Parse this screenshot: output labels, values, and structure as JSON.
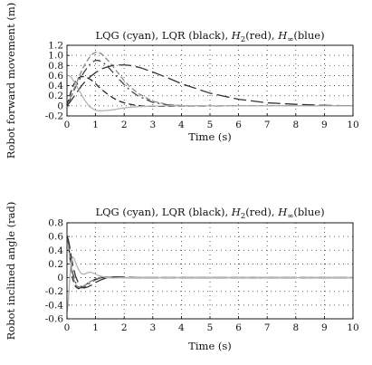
{
  "chart_data": [
    {
      "type": "line",
      "title": {
        "parts": [
          {
            "text": "LQG (cyan), LQR (black), ",
            "italic": false
          },
          {
            "text": "H",
            "italic": true
          },
          {
            "text": "2",
            "italic": false,
            "sub": true
          },
          {
            "text": "(red), ",
            "italic": false
          },
          {
            "text": "H",
            "italic": true
          },
          {
            "text": "∞",
            "italic": false,
            "sub": true
          },
          {
            "text": "(blue)",
            "italic": false
          }
        ]
      },
      "xlabel": "Time (s)",
      "ylabel": "Robot forward movement (m)",
      "xlim": [
        0,
        10
      ],
      "ylim": [
        -0.2,
        1.2
      ],
      "xticks": [
        "0",
        "1",
        "2",
        "3",
        "4",
        "5",
        "6",
        "7",
        "8",
        "9",
        "10"
      ],
      "yticks": [
        "1.2",
        "1.0",
        "0.8",
        "0.6",
        "0.4",
        "0.2",
        "0",
        "-0.2"
      ],
      "grid": true,
      "series": [
        {
          "color": "#222222",
          "dash": "7 4",
          "x": [
            0,
            0.1,
            0.2,
            0.3,
            0.4,
            0.5,
            0.6,
            0.7,
            0.8,
            0.9,
            1.0,
            1.1,
            1.2,
            1.4,
            1.6,
            1.8,
            2.0,
            2.3,
            2.6,
            3.0,
            3.5,
            4.0,
            5.0,
            6.0,
            7.0,
            8.0,
            9.0,
            10.0
          ],
          "y": [
            0,
            0.21,
            0.38,
            0.49,
            0.55,
            0.58,
            0.58,
            0.56,
            0.53,
            0.49,
            0.44,
            0.38,
            0.33,
            0.24,
            0.16,
            0.1,
            0.06,
            0.02,
            0,
            -0.01,
            -0.01,
            -0.005,
            0,
            0,
            0,
            0,
            0,
            0
          ]
        },
        {
          "color": "#444444",
          "dash": "9 4 2 4",
          "x": [
            0,
            0.1,
            0.2,
            0.3,
            0.4,
            0.5,
            0.6,
            0.7,
            0.8,
            0.9,
            1.0,
            1.1,
            1.2,
            1.3,
            1.4,
            1.6,
            1.8,
            2.0,
            2.2,
            2.5,
            3.0,
            3.5,
            4.0,
            5.0,
            6.0,
            7.0,
            8.0,
            10.0
          ],
          "y": [
            0,
            0.12,
            0.25,
            0.37,
            0.48,
            0.58,
            0.67,
            0.75,
            0.82,
            0.87,
            0.9,
            0.9,
            0.88,
            0.84,
            0.79,
            0.67,
            0.54,
            0.42,
            0.31,
            0.19,
            0.07,
            0.02,
            0,
            -0.005,
            0,
            0,
            0,
            0
          ]
        },
        {
          "color": "#888888",
          "dash": "6 3",
          "x": [
            0,
            0.1,
            0.2,
            0.3,
            0.4,
            0.5,
            0.6,
            0.7,
            0.8,
            0.9,
            1.0,
            1.1,
            1.2,
            1.3,
            1.4,
            1.6,
            1.8,
            2.0,
            2.2,
            2.5,
            3.0,
            3.5,
            4.0,
            5.0,
            6.0,
            7.0,
            8.0,
            10.0
          ],
          "y": [
            0,
            0.13,
            0.27,
            0.41,
            0.55,
            0.68,
            0.79,
            0.89,
            0.97,
            1.03,
            1.06,
            1.06,
            1.03,
            0.98,
            0.92,
            0.79,
            0.64,
            0.5,
            0.38,
            0.24,
            0.09,
            0.03,
            0.005,
            0,
            0,
            0,
            0,
            0
          ]
        },
        {
          "color": "#333333",
          "dash": "14 5",
          "x": [
            0,
            0.1,
            0.2,
            0.3,
            0.4,
            0.5,
            0.6,
            0.8,
            1.0,
            1.2,
            1.4,
            1.6,
            1.8,
            2.0,
            2.2,
            2.4,
            2.6,
            3.0,
            3.5,
            4.0,
            5.0,
            6.0,
            7.0,
            8.0,
            9.0,
            10.0
          ],
          "y": [
            0,
            0.07,
            0.15,
            0.23,
            0.31,
            0.39,
            0.46,
            0.57,
            0.66,
            0.73,
            0.77,
            0.8,
            0.81,
            0.81,
            0.8,
            0.78,
            0.75,
            0.67,
            0.56,
            0.44,
            0.25,
            0.13,
            0.06,
            0.03,
            0.01,
            0
          ]
        },
        {
          "color": "#b4b4b4",
          "dash": "none",
          "x": [
            0,
            0.05,
            0.1,
            0.15,
            0.2,
            0.3,
            0.4,
            0.5,
            0.6,
            0.7,
            0.8,
            1.0,
            1.2,
            1.4,
            1.6,
            1.8,
            2.0,
            2.2,
            2.5,
            3.0,
            3.5,
            4.0,
            5.0,
            6.0,
            10.0
          ],
          "y": [
            0.6,
            0.6,
            0.59,
            0.56,
            0.52,
            0.43,
            0.33,
            0.23,
            0.13,
            0.05,
            -0.02,
            -0.09,
            -0.1,
            -0.09,
            -0.08,
            -0.06,
            -0.04,
            -0.03,
            -0.015,
            -0.005,
            0,
            0,
            0,
            0,
            0
          ]
        }
      ]
    },
    {
      "type": "line",
      "title": {
        "parts": [
          {
            "text": "LQG (cyan), LQR (black), ",
            "italic": false
          },
          {
            "text": "H",
            "italic": true
          },
          {
            "text": "2",
            "italic": false,
            "sub": true
          },
          {
            "text": "(red), ",
            "italic": false
          },
          {
            "text": "H",
            "italic": true
          },
          {
            "text": "∞",
            "italic": false,
            "sub": true
          },
          {
            "text": "(blue)",
            "italic": false
          }
        ]
      },
      "xlabel": "Time (s)",
      "ylabel": "Robot inclined angle (rad)",
      "xlim": [
        0,
        10
      ],
      "ylim": [
        -0.6,
        0.8
      ],
      "xticks": [
        "0",
        "1",
        "2",
        "3",
        "4",
        "5",
        "6",
        "7",
        "8",
        "9",
        "10"
      ],
      "yticks": [
        "0.8",
        "0.6",
        "0.4",
        "0.2",
        "0",
        "-0.2",
        "-0.4",
        "-0.6"
      ],
      "grid": true,
      "series": [
        {
          "color": "#222222",
          "dash": "7 4",
          "x": [
            0,
            0.05,
            0.1,
            0.15,
            0.2,
            0.3,
            0.4,
            0.5,
            0.6,
            0.7,
            0.8,
            0.9,
            1.0,
            1.2,
            1.4,
            1.6,
            2.0,
            2.5,
            3.0,
            4.0,
            10.0
          ],
          "y": [
            0.6,
            0.5,
            0.3,
            0.12,
            -0.02,
            -0.13,
            -0.16,
            -0.15,
            -0.12,
            -0.09,
            -0.06,
            -0.04,
            -0.02,
            0,
            0.005,
            0.005,
            0,
            0,
            0,
            0,
            0
          ]
        },
        {
          "color": "#444444",
          "dash": "9 4 2 4",
          "x": [
            0,
            0.05,
            0.1,
            0.15,
            0.2,
            0.3,
            0.4,
            0.5,
            0.6,
            0.7,
            0.8,
            1.0,
            1.2,
            1.4,
            1.6,
            2.0,
            2.5,
            3.0,
            10.0
          ],
          "y": [
            0.6,
            0.52,
            0.36,
            0.2,
            0.07,
            -0.07,
            -0.13,
            -0.15,
            -0.14,
            -0.11,
            -0.08,
            -0.03,
            0,
            0.01,
            0.005,
            0,
            0,
            0,
            0
          ]
        },
        {
          "color": "#888888",
          "dash": "6 3",
          "x": [
            0,
            0.05,
            0.1,
            0.15,
            0.2,
            0.3,
            0.4,
            0.5,
            0.6,
            0.7,
            0.8,
            1.0,
            1.2,
            1.4,
            1.6,
            2.0,
            2.5,
            3.0,
            10.0
          ],
          "y": [
            0.6,
            0.5,
            0.32,
            0.15,
            0.02,
            -0.1,
            -0.14,
            -0.14,
            -0.12,
            -0.09,
            -0.06,
            -0.02,
            0.01,
            0.01,
            0.005,
            0,
            0,
            0,
            0
          ]
        },
        {
          "color": "#333333",
          "dash": "14 5",
          "x": [
            0,
            0.05,
            0.1,
            0.15,
            0.2,
            0.3,
            0.4,
            0.5,
            0.6,
            0.7,
            0.8,
            0.9,
            1.0,
            1.2,
            1.4,
            1.6,
            2.0,
            2.5,
            3.0,
            4.0,
            10.0
          ],
          "y": [
            0.6,
            0.55,
            0.44,
            0.31,
            0.19,
            0.02,
            -0.08,
            -0.13,
            -0.15,
            -0.14,
            -0.12,
            -0.1,
            -0.07,
            -0.03,
            0,
            0.01,
            0.01,
            0,
            0,
            0,
            0
          ]
        },
        {
          "color": "#b4b4b4",
          "dash": "none",
          "x": [
            0,
            0.03,
            0.06,
            0.09,
            0.12,
            0.15,
            0.2,
            0.25,
            0.3,
            0.4,
            0.5,
            0.6,
            0.7,
            0.8,
            0.9,
            1.0,
            1.1,
            1.2,
            1.4,
            1.6,
            2.0,
            2.5,
            3.0,
            10.0
          ],
          "y": [
            -0.5,
            -0.42,
            -0.25,
            -0.05,
            0.12,
            0.24,
            0.3,
            0.28,
            0.22,
            0.12,
            0.06,
            0.05,
            0.07,
            0.08,
            0.07,
            0.05,
            0.03,
            0.02,
            0,
            -0.005,
            0,
            0,
            0,
            0
          ]
        }
      ]
    }
  ]
}
